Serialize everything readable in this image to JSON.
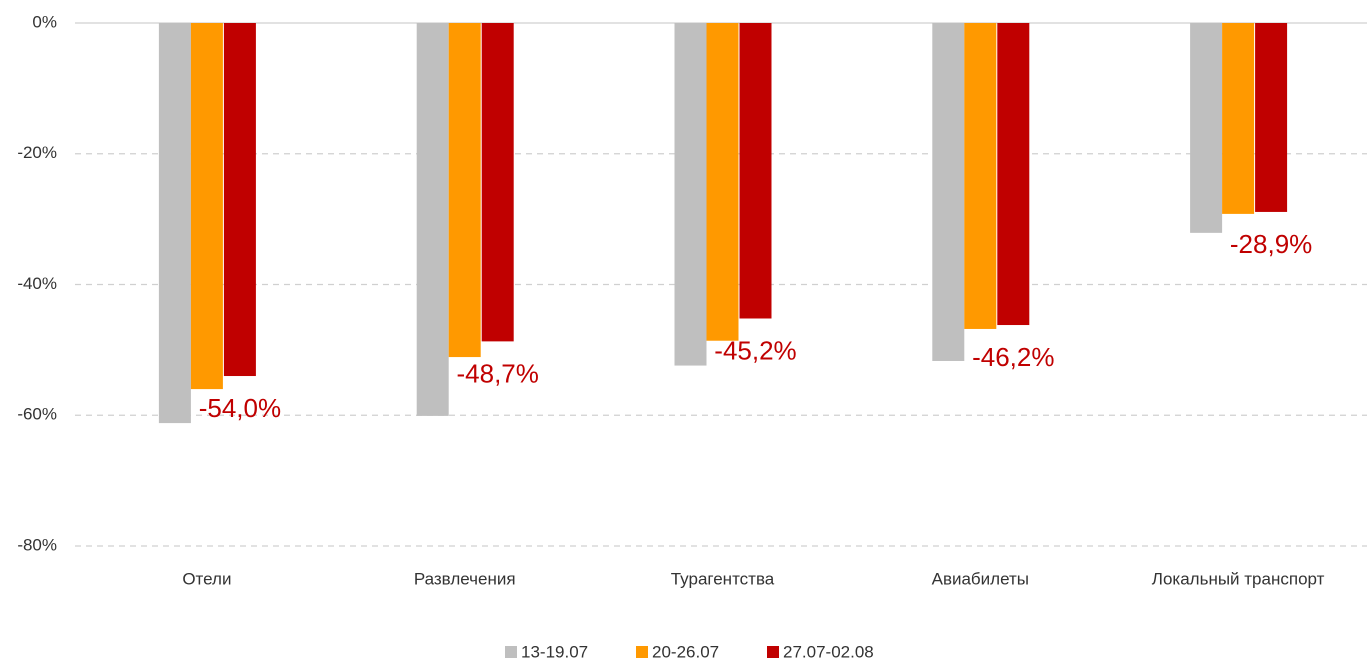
{
  "chart_data": {
    "type": "bar",
    "categories": [
      "Отели",
      "Развлечения",
      "Турагентства",
      "Авиабилеты",
      "Локальный транспорт"
    ],
    "series": [
      {
        "name": "13-19.07",
        "color": "#bfbfbf",
        "values": [
          -61.2,
          -60.1,
          -52.4,
          -51.7,
          -32.1
        ]
      },
      {
        "name": "20-26.07",
        "color": "#ff9900",
        "values": [
          -56.0,
          -51.1,
          -48.6,
          -46.8,
          -29.2
        ]
      },
      {
        "name": "27.07-02.08",
        "color": "#c00000",
        "values": [
          -54.0,
          -48.7,
          -45.2,
          -46.2,
          -28.9
        ],
        "value_labels": [
          "-54,0%",
          "-48,7%",
          "-45,2%",
          "-46,2%",
          "-28,9%"
        ]
      }
    ],
    "ylim": [
      -80,
      0
    ],
    "yticks": [
      {
        "value": 0,
        "label": "0%"
      },
      {
        "value": -20,
        "label": "-20%"
      },
      {
        "value": -40,
        "label": "-40%"
      },
      {
        "value": -60,
        "label": "-60%"
      },
      {
        "value": -80,
        "label": "-80%"
      }
    ],
    "grid": true,
    "legend": "bottom"
  }
}
